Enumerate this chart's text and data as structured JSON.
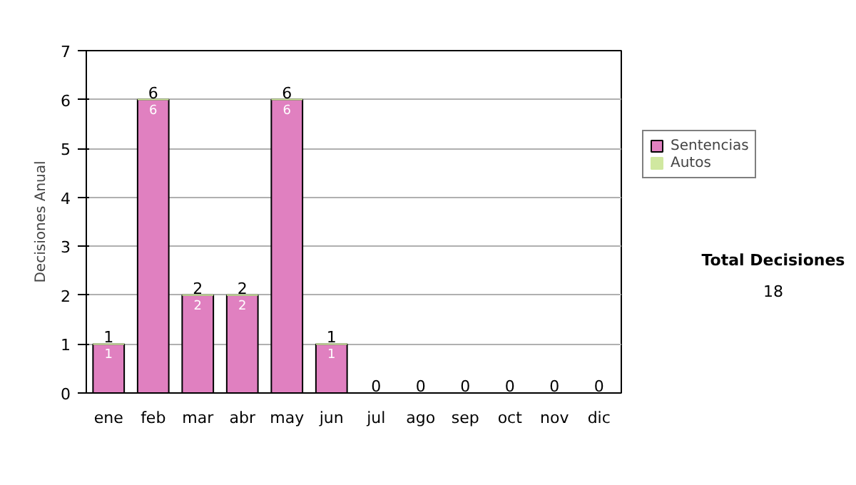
{
  "chart_data": {
    "type": "bar",
    "stacked": true,
    "ylabel": "Decisiones Anual",
    "categories": [
      "ene",
      "feb",
      "mar",
      "abr",
      "may",
      "jun",
      "jul",
      "ago",
      "sep",
      "oct",
      "nov",
      "dic"
    ],
    "series": [
      {
        "name": "Sentencias",
        "color": "#e080c0",
        "values": [
          1,
          6,
          2,
          2,
          6,
          1,
          0,
          0,
          0,
          0,
          0,
          0
        ],
        "value_labels": [
          "1",
          "6",
          "2",
          "2",
          "6",
          "1",
          null,
          null,
          null,
          null,
          null,
          null
        ]
      },
      {
        "name": "Autos",
        "color": "#d0e8a0",
        "values": [
          0,
          0,
          0,
          0,
          0,
          0,
          0,
          0,
          0,
          0,
          0,
          0
        ]
      }
    ],
    "totals": [
      "1",
      "6",
      "2",
      "2",
      "6",
      "1",
      "0",
      "0",
      "0",
      "0",
      "0",
      "0"
    ],
    "ylim": [
      0,
      7
    ],
    "yticks": [
      0,
      1,
      2,
      3,
      4,
      5,
      6,
      7
    ],
    "grid": "y",
    "legend": "right",
    "annotations": [
      "Total Decisiones",
      "18"
    ]
  }
}
